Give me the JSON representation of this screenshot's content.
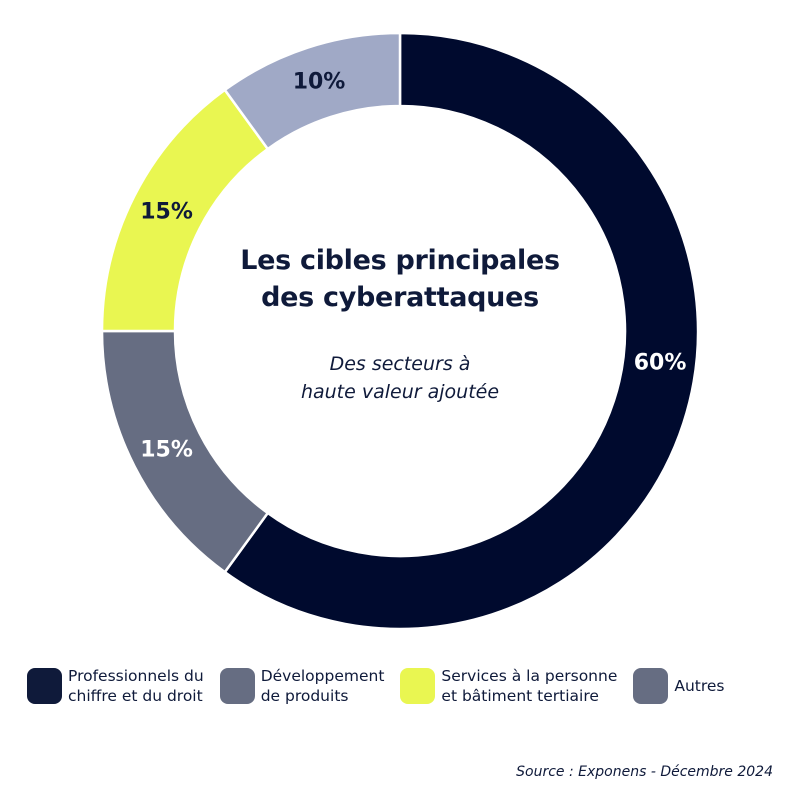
{
  "chart_data": {
    "type": "pie",
    "variant": "donut",
    "title": [
      "Les cibles principales",
      "des cyberattaques"
    ],
    "subtitle": [
      "Des secteurs à",
      "haute valeur ajoutée"
    ],
    "slices": [
      {
        "name": "Professionnels du chiffre et du droit",
        "value": 60,
        "label": "60%",
        "color": "#000a2e",
        "label_color": "#ffffff"
      },
      {
        "name": "Développement de produits",
        "value": 15,
        "label": "15%",
        "color": "#666d82",
        "label_color": "#ffffff"
      },
      {
        "name": "Services à la personne et bâtiment tertiaire",
        "value": 15,
        "label": "15%",
        "color": "#e9f651",
        "label_color": "#0f1a3a"
      },
      {
        "name": "Autres",
        "value": 10,
        "label": "10%",
        "color": "#a0a9c6",
        "label_color": "#0f1a3a"
      }
    ],
    "start": "top",
    "direction": "clockwise",
    "legend_position": "bottom"
  },
  "legend": [
    {
      "lines": [
        "Professionnels du",
        "chiffre et du droit"
      ],
      "color": "#0f1a3a"
    },
    {
      "lines": [
        "Développement",
        "de produits"
      ],
      "color": "#666d82"
    },
    {
      "lines": [
        "Services à la personne",
        "et bâtiment tertiaire"
      ],
      "color": "#e9f651"
    },
    {
      "lines": [
        "Autres"
      ],
      "color": "#666d82"
    }
  ],
  "source": "Source : Exponens - Décembre 2024"
}
